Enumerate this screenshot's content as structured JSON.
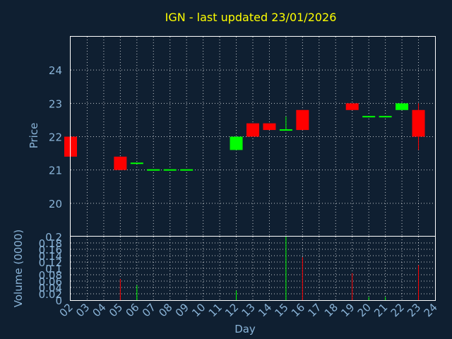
{
  "title": "IGN - last updated 23/01/2026",
  "colors": {
    "background": "#0f1f31",
    "up": "#00ff00",
    "down": "#ff0000",
    "title": "#ffff00",
    "axis_text": "#8ab4d8",
    "frame": "#ffffff"
  },
  "chart_data": [
    {
      "type": "candlestick",
      "panel": "price",
      "ylabel": "Price",
      "ylim": [
        19.0,
        25.0
      ],
      "yticks": [
        20,
        21,
        22,
        23,
        24
      ],
      "grid": true,
      "candles": [
        {
          "day": "02",
          "open": 22.0,
          "close": 21.4,
          "high": 22.0,
          "low": 21.4
        },
        {
          "day": "05",
          "open": 21.4,
          "close": 21.0,
          "high": 21.4,
          "low": 21.0
        },
        {
          "day": "06",
          "open": 21.2,
          "close": 21.2,
          "high": 21.2,
          "low": 21.2
        },
        {
          "day": "07",
          "open": 21.0,
          "close": 21.0,
          "high": 21.0,
          "low": 21.0
        },
        {
          "day": "08",
          "open": 21.0,
          "close": 21.0,
          "high": 21.0,
          "low": 21.0
        },
        {
          "day": "09",
          "open": 21.0,
          "close": 21.0,
          "high": 21.0,
          "low": 21.0
        },
        {
          "day": "12",
          "open": 21.6,
          "close": 22.0,
          "high": 22.0,
          "low": 21.6
        },
        {
          "day": "13",
          "open": 22.4,
          "close": 22.0,
          "high": 22.4,
          "low": 22.0
        },
        {
          "day": "14",
          "open": 22.4,
          "close": 22.2,
          "high": 22.4,
          "low": 22.2
        },
        {
          "day": "15",
          "open": 22.2,
          "close": 22.2,
          "high": 22.6,
          "low": 22.2
        },
        {
          "day": "16",
          "open": 22.8,
          "close": 22.2,
          "high": 22.8,
          "low": 22.2
        },
        {
          "day": "19",
          "open": 23.0,
          "close": 22.8,
          "high": 23.0,
          "low": 22.8
        },
        {
          "day": "20",
          "open": 22.6,
          "close": 22.6,
          "high": 22.6,
          "low": 22.6
        },
        {
          "day": "21",
          "open": 22.6,
          "close": 22.6,
          "high": 22.6,
          "low": 22.6
        },
        {
          "day": "22",
          "open": 22.8,
          "close": 23.0,
          "high": 23.0,
          "low": 22.8
        },
        {
          "day": "23",
          "open": 22.8,
          "close": 22.0,
          "high": 23.0,
          "low": 21.6
        }
      ]
    },
    {
      "type": "bar",
      "panel": "volume",
      "ylabel": "Volume (0000)",
      "xlabel": "Day",
      "ylim": [
        0,
        0.2
      ],
      "yticks": [
        "0",
        "0.02",
        "0.04",
        "0.06",
        "0.08",
        "0.1",
        "0.12",
        "0.14",
        "0.16",
        "0.18",
        "0.2"
      ],
      "categories": [
        "02",
        "03",
        "04",
        "05",
        "06",
        "07",
        "08",
        "09",
        "10",
        "11",
        "12",
        "13",
        "14",
        "15",
        "16",
        "17",
        "18",
        "19",
        "20",
        "21",
        "22",
        "23",
        "24"
      ],
      "grid": true,
      "bars": [
        {
          "day": "05",
          "value": 0.067,
          "direction": "down"
        },
        {
          "day": "06",
          "value": 0.047,
          "direction": "up"
        },
        {
          "day": "12",
          "value": 0.03,
          "direction": "up"
        },
        {
          "day": "15",
          "value": 0.2,
          "direction": "up"
        },
        {
          "day": "16",
          "value": 0.135,
          "direction": "down"
        },
        {
          "day": "19",
          "value": 0.085,
          "direction": "down"
        },
        {
          "day": "20",
          "value": 0.01,
          "direction": "up"
        },
        {
          "day": "21",
          "value": 0.01,
          "direction": "up"
        },
        {
          "day": "23",
          "value": 0.11,
          "direction": "down"
        }
      ]
    }
  ]
}
